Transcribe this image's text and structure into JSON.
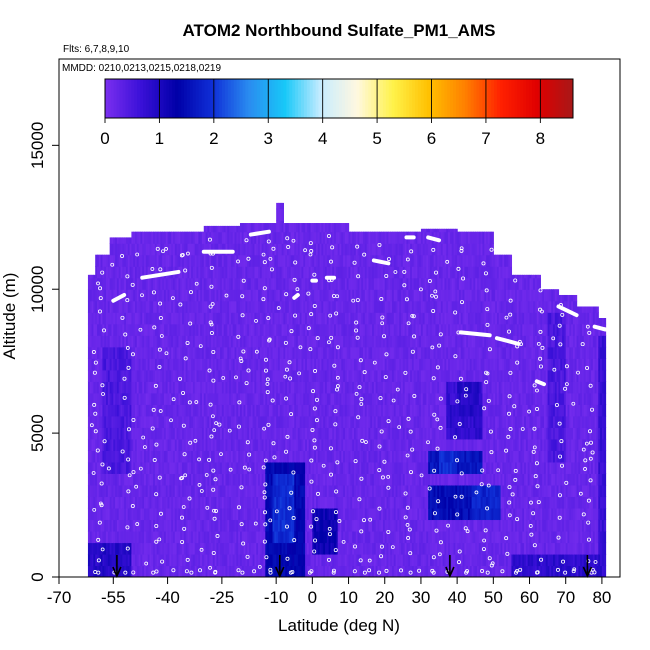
{
  "chart_data": {
    "type": "heatmap",
    "title": "ATOM2 Northbound Sulfate_PM1_AMS",
    "flights_label": "Flts: 6,7,8,9,10",
    "dates_label": "MMDD: 0210,0213,0215,0218,0219",
    "xlabel": "Latitude (deg N)",
    "ylabel": "Altitude (m)",
    "xlim": [
      -70,
      85
    ],
    "ylim": [
      0,
      18000
    ],
    "x_ticks": [
      -70,
      -55,
      -40,
      -25,
      -10,
      0,
      10,
      20,
      30,
      40,
      50,
      60,
      70,
      80
    ],
    "x_tick_labels": [
      "-70",
      "-55",
      "-40",
      "-25",
      "-10",
      "0",
      "10",
      "20",
      "30",
      "40",
      "50",
      "60",
      "70",
      "80"
    ],
    "y_ticks": [
      0,
      5000,
      10000,
      15000
    ],
    "y_tick_labels": [
      "0",
      "5000",
      "10000",
      "15000"
    ],
    "colorbar": {
      "min": 0,
      "max": 8.6,
      "ticks": [
        0,
        1,
        2,
        3,
        4,
        5,
        6,
        7,
        8
      ],
      "tick_labels": [
        "0",
        "1",
        "2",
        "3",
        "4",
        "5",
        "6",
        "7",
        "8"
      ],
      "colors": [
        "#7b2ff0",
        "#3a10d8",
        "#0000a8",
        "#1030d8",
        "#2a8cf0",
        "#18c8f8",
        "#c8ecff",
        "#fff8e0",
        "#fff24a",
        "#ffc000",
        "#ff8000",
        "#ff2000",
        "#e00000",
        "#a81818"
      ]
    },
    "background_value": 0.2,
    "domain_top": [
      {
        "x": -62,
        "alt": 10500
      },
      {
        "x": -60,
        "alt": 11200
      },
      {
        "x": -56,
        "alt": 11800
      },
      {
        "x": -50,
        "alt": 12000
      },
      {
        "x": -40,
        "alt": 12000
      },
      {
        "x": -30,
        "alt": 12200
      },
      {
        "x": -20,
        "alt": 12300
      },
      {
        "x": -11,
        "alt": 12300
      },
      {
        "x": -10,
        "alt": 13000
      },
      {
        "x": -8,
        "alt": 12300
      },
      {
        "x": 10,
        "alt": 12000
      },
      {
        "x": 20,
        "alt": 12000
      },
      {
        "x": 30,
        "alt": 12100
      },
      {
        "x": 40,
        "alt": 12000
      },
      {
        "x": 50,
        "alt": 11200
      },
      {
        "x": 55,
        "alt": 10500
      },
      {
        "x": 63,
        "alt": 10000
      },
      {
        "x": 68,
        "alt": 9800
      },
      {
        "x": 73,
        "alt": 9400
      },
      {
        "x": 79,
        "alt": 9000
      },
      {
        "x": 81,
        "alt": 8600
      }
    ],
    "enhanced_regions": [
      {
        "x0": -13,
        "x1": -2,
        "y0": 200,
        "y1": 3800,
        "value": 1.4
      },
      {
        "x0": -11,
        "x1": -5,
        "y0": 1200,
        "y1": 3400,
        "value": 1.9
      },
      {
        "x0": 0,
        "x1": 7,
        "y0": 800,
        "y1": 2300,
        "value": 1.2
      },
      {
        "x0": 32,
        "x1": 47,
        "y0": 3500,
        "y1": 4200,
        "value": 1.6
      },
      {
        "x0": 35,
        "x1": 40,
        "y0": 3700,
        "y1": 4200,
        "value": 1.9
      },
      {
        "x0": 32,
        "x1": 52,
        "y0": 2000,
        "y1": 3000,
        "value": 1.5
      },
      {
        "x0": 44,
        "x1": 52,
        "y0": 2000,
        "y1": 3000,
        "value": 1.8
      },
      {
        "x0": 37,
        "x1": 47,
        "y0": 4800,
        "y1": 5800,
        "value": 0.8
      },
      {
        "x0": 37,
        "x1": 47,
        "y0": 5800,
        "y1": 6900,
        "value": 0.7
      },
      {
        "x0": 40,
        "x1": 46,
        "y0": 5800,
        "y1": 6900,
        "value": 0.9
      },
      {
        "x0": -68,
        "x1": -50,
        "y0": 0,
        "y1": 1200,
        "value": 0.9
      },
      {
        "x0": 55,
        "x1": 80,
        "y0": 0,
        "y1": 800,
        "value": 0.8
      },
      {
        "x0": 79,
        "x1": 81,
        "y0": 100,
        "y1": 8500,
        "value": 0.7
      },
      {
        "x0": -58,
        "x1": -50,
        "y0": 3500,
        "y1": 8000,
        "value": 0.5
      },
      {
        "x0": 65,
        "x1": 70,
        "y0": 4000,
        "y1": 9000,
        "value": 0.5
      }
    ],
    "cruise_tracks": [
      {
        "x0": -55,
        "x1": -52,
        "alt0": 9600,
        "alt1": 9800
      },
      {
        "x0": -47,
        "x1": -37,
        "alt0": 10400,
        "alt1": 10600
      },
      {
        "x0": -30,
        "x1": -22,
        "alt0": 11300,
        "alt1": 11300
      },
      {
        "x0": -17,
        "x1": -12,
        "alt0": 11900,
        "alt1": 12000
      },
      {
        "x0": -60,
        "x1": -58,
        "alt0": 11800,
        "alt1": 11900
      },
      {
        "x0": -5,
        "x1": -4,
        "alt0": 9700,
        "alt1": 9800
      },
      {
        "x0": 0,
        "x1": 1,
        "alt0": 10300,
        "alt1": 10300
      },
      {
        "x0": 4,
        "x1": 6,
        "alt0": 10400,
        "alt1": 10400
      },
      {
        "x0": 17,
        "x1": 21,
        "alt0": 11000,
        "alt1": 10900
      },
      {
        "x0": 26,
        "x1": 28,
        "alt0": 11800,
        "alt1": 11800
      },
      {
        "x0": 32,
        "x1": 35,
        "alt0": 11800,
        "alt1": 11700
      },
      {
        "x0": 41,
        "x1": 49,
        "alt0": 8500,
        "alt1": 8400
      },
      {
        "x0": 51,
        "x1": 57,
        "alt0": 8300,
        "alt1": 8100
      },
      {
        "x0": 62,
        "x1": 64,
        "alt0": 6800,
        "alt1": 6700
      },
      {
        "x0": 68,
        "x1": 73,
        "alt0": 9400,
        "alt1": 9100
      },
      {
        "x0": 78,
        "x1": 81,
        "alt0": 8700,
        "alt1": 8600
      }
    ],
    "profile_latitudes": [
      -59,
      -51,
      -43,
      -35,
      -27,
      -19,
      -12,
      -6,
      0,
      6,
      13,
      20,
      27,
      34,
      41,
      48,
      55,
      62,
      69,
      76
    ],
    "airport_arrows": [
      -54,
      -9,
      38,
      76
    ]
  }
}
